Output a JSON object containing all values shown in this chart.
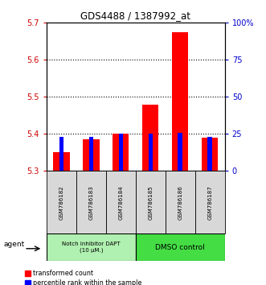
{
  "title": "GDS4488 / 1387992_at",
  "samples": [
    "GSM786182",
    "GSM786183",
    "GSM786184",
    "GSM786185",
    "GSM786186",
    "GSM786187"
  ],
  "red_values": [
    5.35,
    5.385,
    5.4,
    5.48,
    5.675,
    5.39
  ],
  "blue_values": [
    5.392,
    5.392,
    5.4,
    5.401,
    5.402,
    5.392
  ],
  "ylim_left": [
    5.3,
    5.7
  ],
  "ylim_right": [
    0,
    100
  ],
  "yticks_left": [
    5.3,
    5.4,
    5.5,
    5.6,
    5.7
  ],
  "yticks_right": [
    0,
    25,
    50,
    75,
    100
  ],
  "grid_values": [
    5.4,
    5.5,
    5.6
  ],
  "bar_bottom": 5.3,
  "groups": [
    {
      "label": "Notch inhibitor DAPT\n(10 μM.)",
      "color": "#b0f0b0",
      "count": 3
    },
    {
      "label": "DMSO control",
      "color": "#44dd44",
      "count": 3
    }
  ],
  "legend_red": "transformed count",
  "legend_blue": "percentile rank within the sample",
  "agent_label": "agent",
  "background_color": "#ffffff",
  "plot_bg": "#ffffff",
  "tick_color_left": "#CC0000",
  "tick_color_right": "#0000CC"
}
